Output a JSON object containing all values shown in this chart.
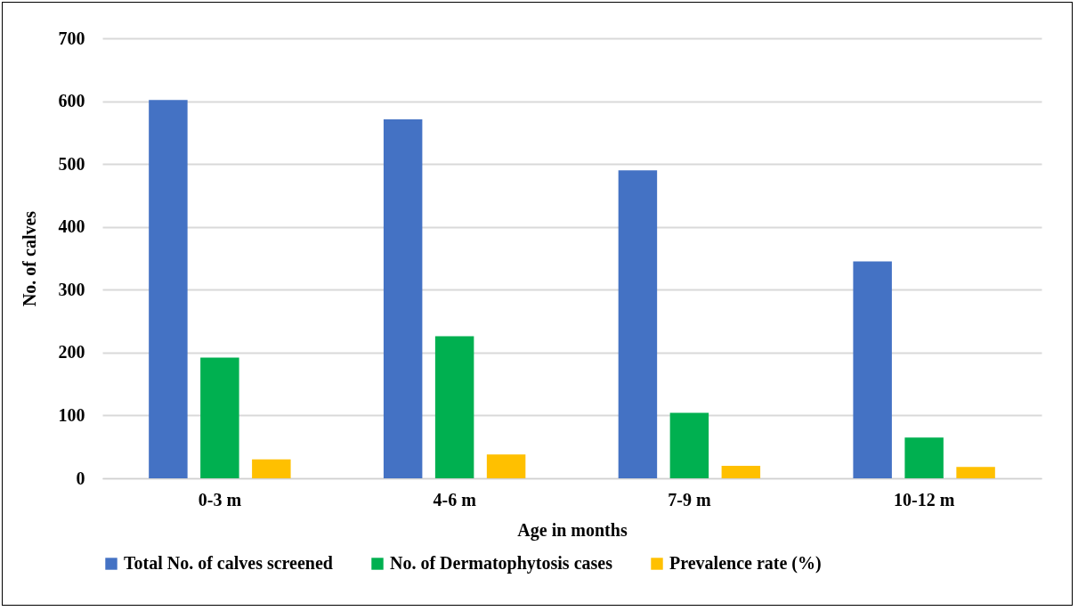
{
  "chart_data": {
    "type": "bar",
    "xlabel": "Age in months",
    "ylabel": "No. of calves",
    "categories": [
      "0-3 m",
      "4-6 m",
      "7-9 m",
      "10-12 m"
    ],
    "series": [
      {
        "name": "Total No. of calves screened",
        "color": "#4472c4",
        "values": [
          602,
          571,
          490,
          345
        ]
      },
      {
        "name": "No. of Dermatophytosis cases",
        "color": "#00b050",
        "values": [
          192,
          226,
          104,
          65
        ]
      },
      {
        "name": "Prevalence rate (%)",
        "color": "#ffc000",
        "values": [
          30,
          38,
          20,
          18
        ]
      }
    ],
    "ylim": [
      0,
      700
    ],
    "yticks": [
      0,
      100,
      200,
      300,
      400,
      500,
      600,
      700
    ],
    "grid": "y",
    "legend": "bottom"
  }
}
